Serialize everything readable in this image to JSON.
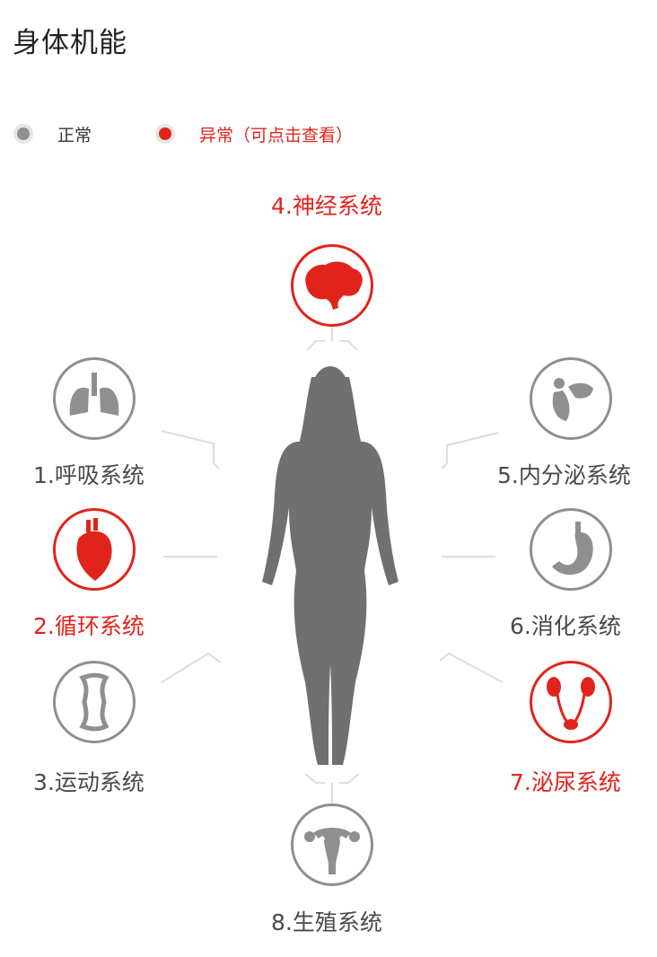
{
  "header": {
    "title": "身体机能"
  },
  "legend": {
    "normal_label": "正常",
    "abnormal_label": "异常（可点击查看）",
    "normal_color": "#8f8f8f",
    "abnormal_color": "#e1241b"
  },
  "systems": [
    {
      "label": "1.呼吸系统",
      "status": "normal",
      "icon": "lungs-icon"
    },
    {
      "label": "2.循环系统",
      "status": "abnormal",
      "icon": "heart-icon"
    },
    {
      "label": "3.运动系统",
      "status": "normal",
      "icon": "bone-icon"
    },
    {
      "label": "4.神经系统",
      "status": "abnormal",
      "icon": "brain-icon"
    },
    {
      "label": "5.内分泌系统",
      "status": "normal",
      "icon": "glands-icon"
    },
    {
      "label": "6.消化系统",
      "status": "normal",
      "icon": "stomach-icon"
    },
    {
      "label": "7.泌尿系统",
      "status": "abnormal",
      "icon": "kidneys-icon"
    },
    {
      "label": "8.生殖系统",
      "status": "normal",
      "icon": "uterus-icon"
    }
  ]
}
